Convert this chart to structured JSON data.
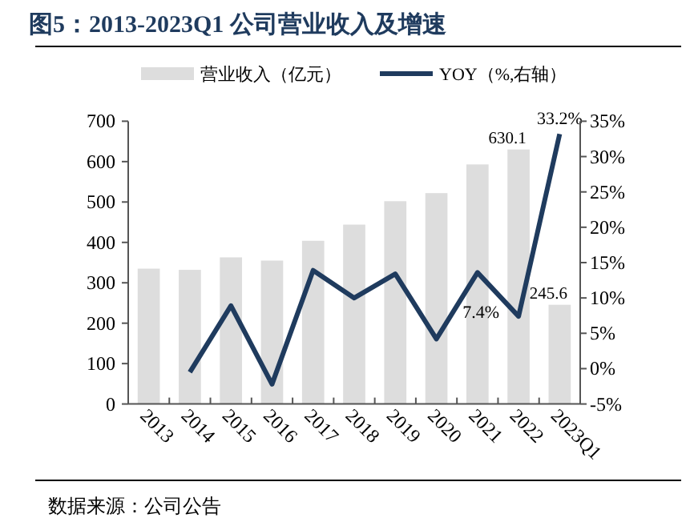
{
  "chart_data": {
    "type": "bar",
    "title": "图5：2013-2023Q1 公司营业收入及增速",
    "categories": [
      "2013",
      "2014",
      "2015",
      "2016",
      "2017",
      "2018",
      "2019",
      "2020",
      "2021",
      "2022",
      "2023Q1"
    ],
    "series": [
      {
        "name": "营业收入（亿元）",
        "color": "#dddddd",
        "values": [
          335,
          332,
          363,
          355,
          404,
          444,
          502,
          522,
          593,
          630.1,
          245.6
        ],
        "value_labels": [
          null,
          null,
          null,
          null,
          null,
          null,
          null,
          null,
          null,
          "630.1",
          "245.6"
        ]
      },
      {
        "name": "YOY（%,右轴）",
        "type": "line",
        "axis": "y2",
        "color": "#1f3b5e",
        "values": [
          null,
          -0.5,
          8.9,
          -2.2,
          13.9,
          10.0,
          13.4,
          4.2,
          13.6,
          7.4,
          33.2
        ],
        "value_labels": [
          null,
          null,
          null,
          null,
          null,
          null,
          null,
          null,
          null,
          "7.4%",
          "33.2%"
        ]
      }
    ],
    "ylim": [
      0,
      700
    ],
    "yticks": [
      0,
      100,
      200,
      300,
      400,
      500,
      600,
      700
    ],
    "y2lim": [
      -5,
      35
    ],
    "y2ticks": [
      {
        "value": -5,
        "label": "-5%"
      },
      {
        "value": 0,
        "label": "0%"
      },
      {
        "value": 5,
        "label": "5%"
      },
      {
        "value": 10,
        "label": "10%"
      },
      {
        "value": 15,
        "label": "15%"
      },
      {
        "value": 20,
        "label": "20%"
      },
      {
        "value": 25,
        "label": "25%"
      },
      {
        "value": 30,
        "label": "30%"
      },
      {
        "value": 35,
        "label": "35%"
      }
    ],
    "legend": "top",
    "grid": false,
    "marker": "none",
    "annotations": [
      "数据来源：公司公告"
    ]
  }
}
